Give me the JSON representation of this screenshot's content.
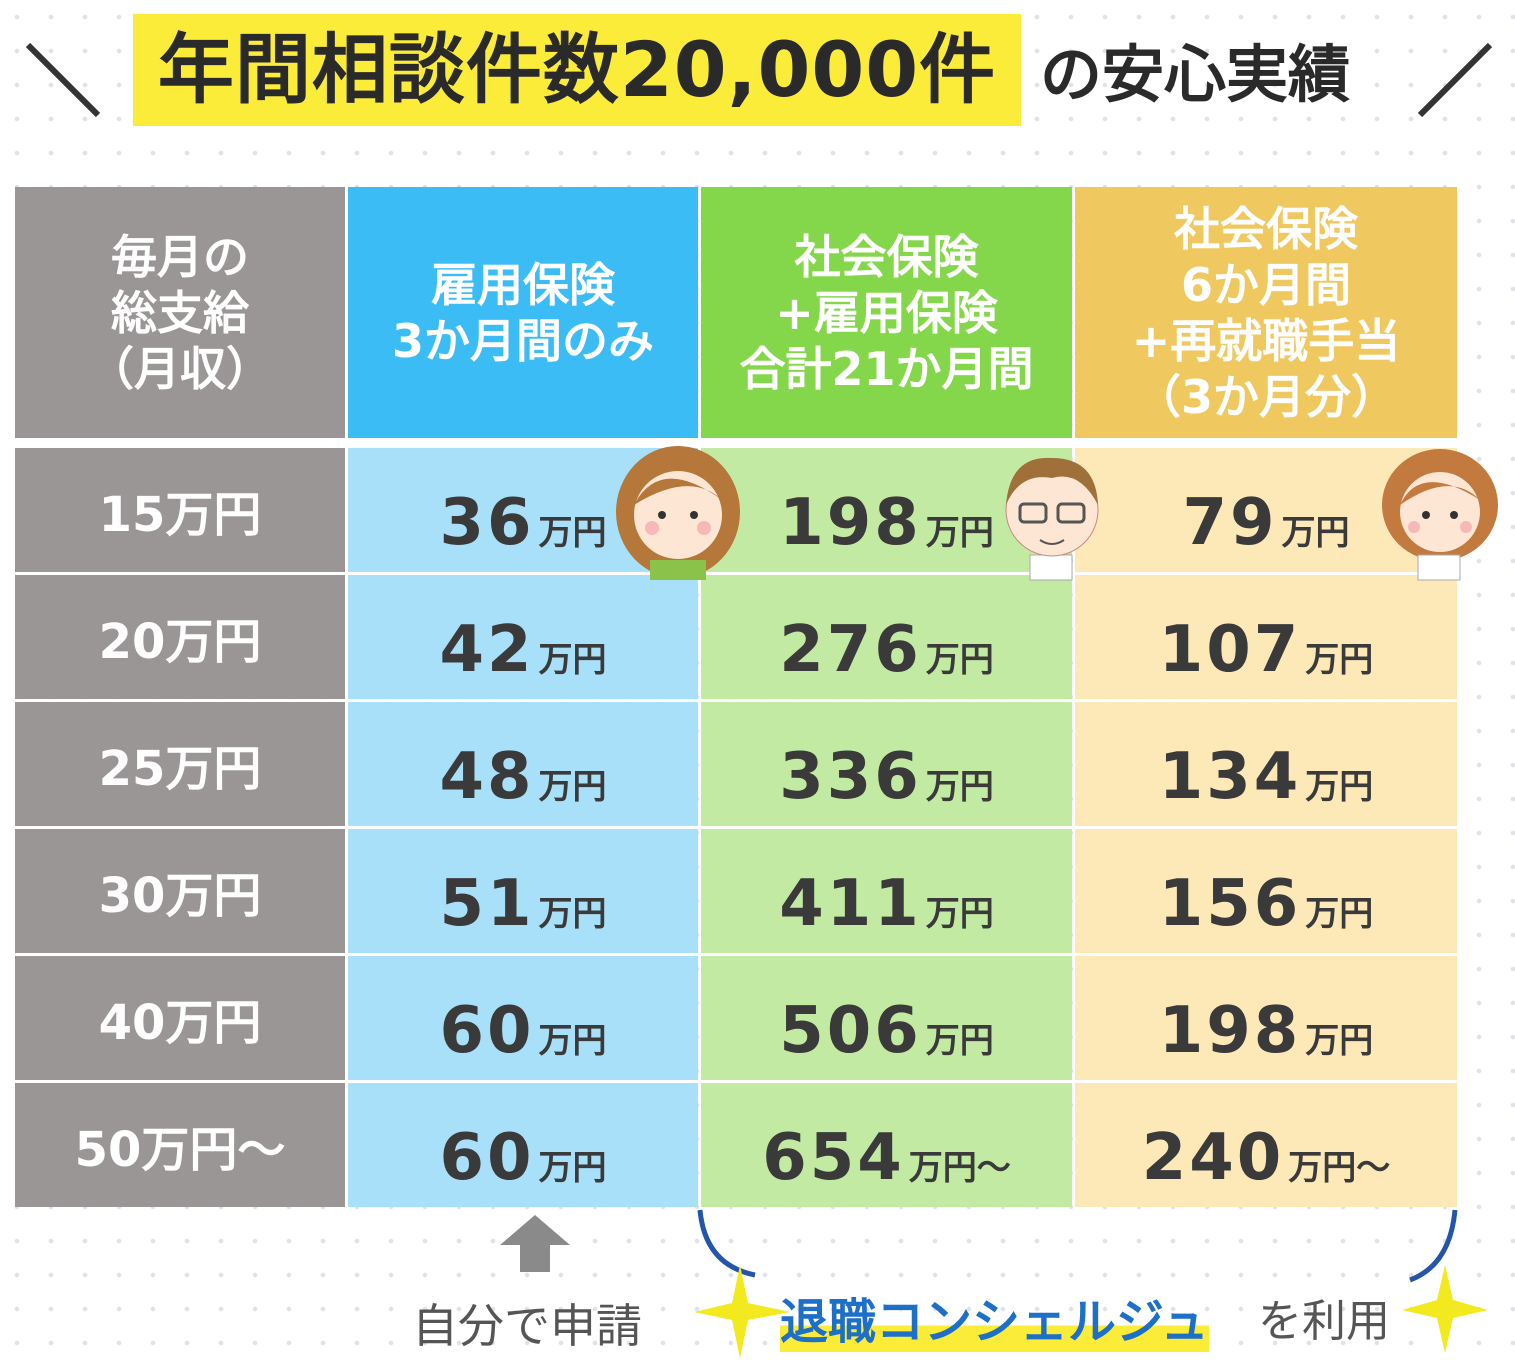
{
  "title": {
    "highlight": "年間相談件数20,000件",
    "suffix": "の安心実績"
  },
  "table": {
    "header": [
      [
        "毎月の",
        "総支給",
        "（月収）"
      ],
      [
        "雇用保険",
        "3か月間のみ"
      ],
      [
        "社会保険",
        "+雇用保険",
        "合計21か月間"
      ],
      [
        "社会保険",
        "6か月間",
        "+再就職手当",
        "（3か月分）"
      ]
    ],
    "rows": [
      {
        "label": "15万円",
        "cells": [
          {
            "amount": 36,
            "unit": "万円"
          },
          {
            "amount": 198,
            "unit": "万円"
          },
          {
            "amount": 79,
            "unit": "万円"
          }
        ]
      },
      {
        "label": "20万円",
        "cells": [
          {
            "amount": 42,
            "unit": "万円"
          },
          {
            "amount": 276,
            "unit": "万円"
          },
          {
            "amount": 107,
            "unit": "万円"
          }
        ]
      },
      {
        "label": "25万円",
        "cells": [
          {
            "amount": 48,
            "unit": "万円"
          },
          {
            "amount": 336,
            "unit": "万円"
          },
          {
            "amount": 134,
            "unit": "万円"
          }
        ]
      },
      {
        "label": "30万円",
        "cells": [
          {
            "amount": 51,
            "unit": "万円"
          },
          {
            "amount": 411,
            "unit": "万円"
          },
          {
            "amount": 156,
            "unit": "万円"
          }
        ]
      },
      {
        "label": "40万円",
        "cells": [
          {
            "amount": 60,
            "unit": "万円"
          },
          {
            "amount": 506,
            "unit": "万円"
          },
          {
            "amount": 198,
            "unit": "万円"
          }
        ]
      },
      {
        "label": "50万円～",
        "cells": [
          {
            "amount": 60,
            "unit": "万円"
          },
          {
            "amount": 654,
            "unit": "万円～"
          },
          {
            "amount": 240,
            "unit": "万円～"
          }
        ]
      }
    ]
  },
  "footer": {
    "self": "自分で申請",
    "service": "退職コンシェルジュ",
    "service_suffix": "を利用"
  }
}
